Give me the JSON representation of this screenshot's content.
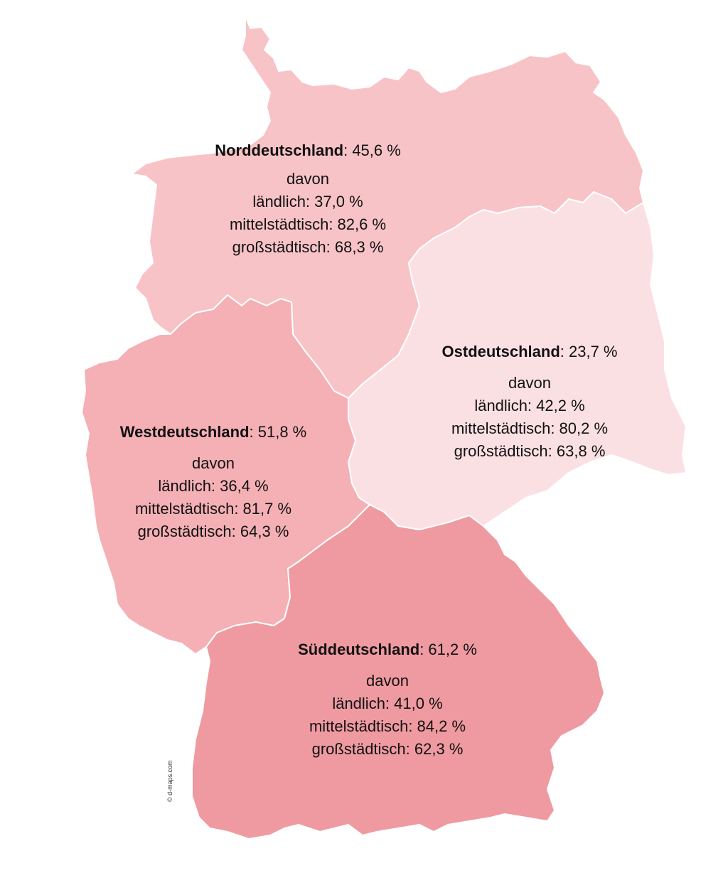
{
  "map": {
    "credit": "© d-maps.com",
    "colors": {
      "nord": "#f7c3c7",
      "ost": "#fbe0e3",
      "west": "#f4b0b5",
      "sued": "#ef9aa1",
      "border": "#ffffff"
    },
    "regions": [
      {
        "id": "nord",
        "name": "Norddeutschland",
        "total": ": 45,6 %",
        "davon": "davon",
        "laendlich": "ländlich: 37,0 %",
        "mittelstaedtisch": "mittelstädtisch: 82,6 %",
        "grossstaedtisch": "großstädtisch: 68,3 %"
      },
      {
        "id": "ost",
        "name": "Ostdeutschland",
        "total": ": 23,7 %",
        "davon": "davon",
        "laendlich": "ländlich: 42,2 %",
        "mittelstaedtisch": "mittelstädtisch: 80,2 %",
        "grossstaedtisch": "großstädtisch: 63,8 %"
      },
      {
        "id": "west",
        "name": "Westdeutschland",
        "total": ": 51,8 %",
        "davon": "davon",
        "laendlich": "ländlich: 36,4 %",
        "mittelstaedtisch": "mittelstädtisch: 81,7 %",
        "grossstaedtisch": "großstädtisch: 64,3 %"
      },
      {
        "id": "sued",
        "name": "Süddeutschland",
        "total": ": 61,2 %",
        "davon": "davon",
        "laendlich": "ländlich: 41,0 %",
        "mittelstaedtisch": "mittelstädtisch: 84,2 %",
        "grossstaedtisch": "großstädtisch: 62,3 %"
      }
    ]
  }
}
